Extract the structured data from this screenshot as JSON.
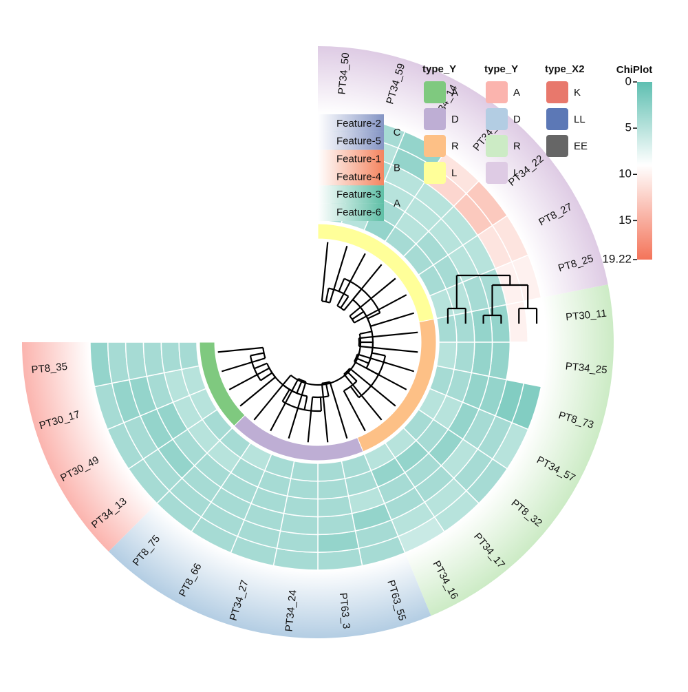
{
  "chart_data": {
    "type": "heatmap",
    "layout": "circular",
    "samples": [
      "PT34_50",
      "PT34_59",
      "PT34_14",
      "PT34_21",
      "PT34_22",
      "PT8_27",
      "PT8_25",
      "PT30_11",
      "PT34_25",
      "PT8_73",
      "PT34_57",
      "PT8_32",
      "PT34_17",
      "PT34_16",
      "PT63_55",
      "PT63_3",
      "PT34_24",
      "PT34_27",
      "PT8_66",
      "PT8_75",
      "PT34_13",
      "PT30_49",
      "PT30_17",
      "PT8_35"
    ],
    "features": [
      "Feature-2",
      "Feature-5",
      "Feature-1",
      "Feature-4",
      "Feature-3",
      "Feature-6"
    ],
    "feature_groups": [
      {
        "label": "C",
        "features": [
          "Feature-2",
          "Feature-5"
        ],
        "color": "#8494C4"
      },
      {
        "label": "B",
        "features": [
          "Feature-1",
          "Feature-4"
        ],
        "color": "#F4845F"
      },
      {
        "label": "A",
        "features": [
          "Feature-3",
          "Feature-6"
        ],
        "color": "#5EBFA6"
      }
    ],
    "sample_groups": [
      {
        "type_Y": "L",
        "ring_color": "#FFFF99",
        "outer_color": "#DECBE4",
        "samples": [
          "PT34_50",
          "PT34_59",
          "PT34_14",
          "PT34_21",
          "PT34_22",
          "PT8_27",
          "PT8_25"
        ]
      },
      {
        "type_Y": "R",
        "ring_color": "#FDC086",
        "outer_color": "#CCEBC5",
        "samples": [
          "PT30_11",
          "PT34_25",
          "PT8_73",
          "PT34_57",
          "PT8_32",
          "PT34_17",
          "PT34_16"
        ]
      },
      {
        "type_Y": "D",
        "ring_color": "#BEAED4",
        "outer_color": "#B3CDE3",
        "samples": [
          "PT63_55",
          "PT63_3",
          "PT34_24",
          "PT34_27",
          "PT8_66",
          "PT8_75"
        ]
      },
      {
        "type_Y": "A",
        "ring_color": "#7FC97F",
        "outer_color": "#FBB4AE",
        "samples": [
          "PT34_13",
          "PT30_49",
          "PT30_17",
          "PT8_35"
        ]
      }
    ],
    "values": [
      [
        3,
        3,
        3,
        3,
        4,
        4
      ],
      [
        4,
        5,
        4,
        3,
        5,
        5
      ],
      [
        3,
        3,
        5,
        5,
        4,
        3
      ],
      [
        11,
        12,
        5,
        5,
        5,
        4
      ],
      [
        13,
        13,
        5,
        5,
        4,
        4
      ],
      [
        11,
        11,
        5,
        5,
        4,
        4
      ],
      [
        10,
        10,
        4,
        4,
        5,
        5
      ],
      [
        9,
        10,
        3,
        3,
        4,
        4
      ],
      [
        9,
        9,
        3,
        3,
        4,
        5
      ],
      [
        2,
        2,
        3,
        3,
        4,
        4
      ],
      [
        5,
        4,
        4,
        3,
        5,
        5
      ],
      [
        4,
        4,
        5,
        3,
        4,
        4
      ],
      [
        5,
        5,
        4,
        4,
        3,
        5
      ],
      [
        6,
        5,
        4,
        4,
        3,
        5
      ],
      [
        4,
        4,
        3,
        5,
        4,
        4
      ],
      [
        4,
        3,
        4,
        4,
        4,
        4
      ],
      [
        4,
        4,
        4,
        4,
        4,
        4
      ],
      [
        4,
        4,
        4,
        4,
        4,
        4
      ],
      [
        4,
        4,
        4,
        4,
        4,
        5
      ],
      [
        4,
        4,
        4,
        4,
        5,
        4
      ],
      [
        4,
        4,
        3,
        4,
        5,
        4
      ],
      [
        4,
        4,
        3,
        3,
        5,
        5
      ],
      [
        4,
        3,
        3,
        4,
        5,
        5
      ],
      [
        3,
        4,
        4,
        4,
        4,
        4
      ]
    ],
    "colorbar": {
      "title": "ChiPlot",
      "min": 0,
      "max": 19.22,
      "ticks": [
        "0",
        "5",
        "10",
        "15",
        "19.22"
      ],
      "colors": [
        "#5EBFB1",
        "#ffffff",
        "#F4745A"
      ]
    },
    "column_tree": {
      "type_X2": [
        "K",
        "LL",
        "EE"
      ],
      "colors": [
        "#E8786C",
        "#5C78B6",
        "#666666"
      ]
    }
  },
  "legends": [
    {
      "title": "type_Y",
      "items": [
        {
          "label": "A",
          "color": "#7FC97F"
        },
        {
          "label": "D",
          "color": "#BEAED4"
        },
        {
          "label": "R",
          "color": "#FDC086"
        },
        {
          "label": "L",
          "color": "#FFFF99"
        }
      ]
    },
    {
      "title": "type_Y",
      "items": [
        {
          "label": "A",
          "color": "#FBB4AE"
        },
        {
          "label": "D",
          "color": "#B3CDE3"
        },
        {
          "label": "R",
          "color": "#CCEBC5"
        },
        {
          "label": "L",
          "color": "#DECBE4"
        }
      ]
    },
    {
      "title": "type_X2",
      "items": [
        {
          "label": "K",
          "color": "#E8786C"
        },
        {
          "label": "LL",
          "color": "#5C78B6"
        },
        {
          "label": "EE",
          "color": "#666666"
        }
      ]
    }
  ]
}
